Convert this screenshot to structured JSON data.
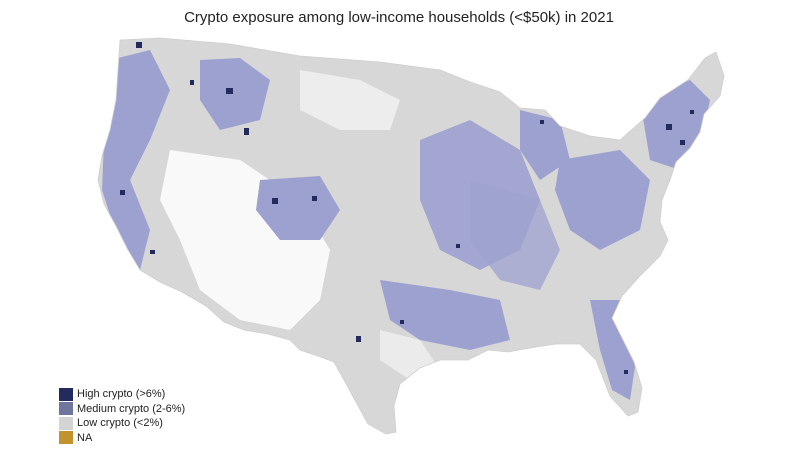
{
  "title": "Crypto exposure among low-income households (<$50k) in 2021",
  "legend": [
    {
      "label": "High crypto (>6%)",
      "color": "#232b5e"
    },
    {
      "label": "Medium crypto (2-6%)",
      "color": "#70759e"
    },
    {
      "label": "Low crypto (<2%)",
      "color": "#d4d4d4"
    },
    {
      "label": "NA",
      "color": "#c2922e"
    }
  ],
  "map_colors": {
    "high": "#232b5e",
    "medium": "#9da1cf",
    "low": "#d7d7d7",
    "na": "#c2922e",
    "background": "#ffffff"
  }
}
